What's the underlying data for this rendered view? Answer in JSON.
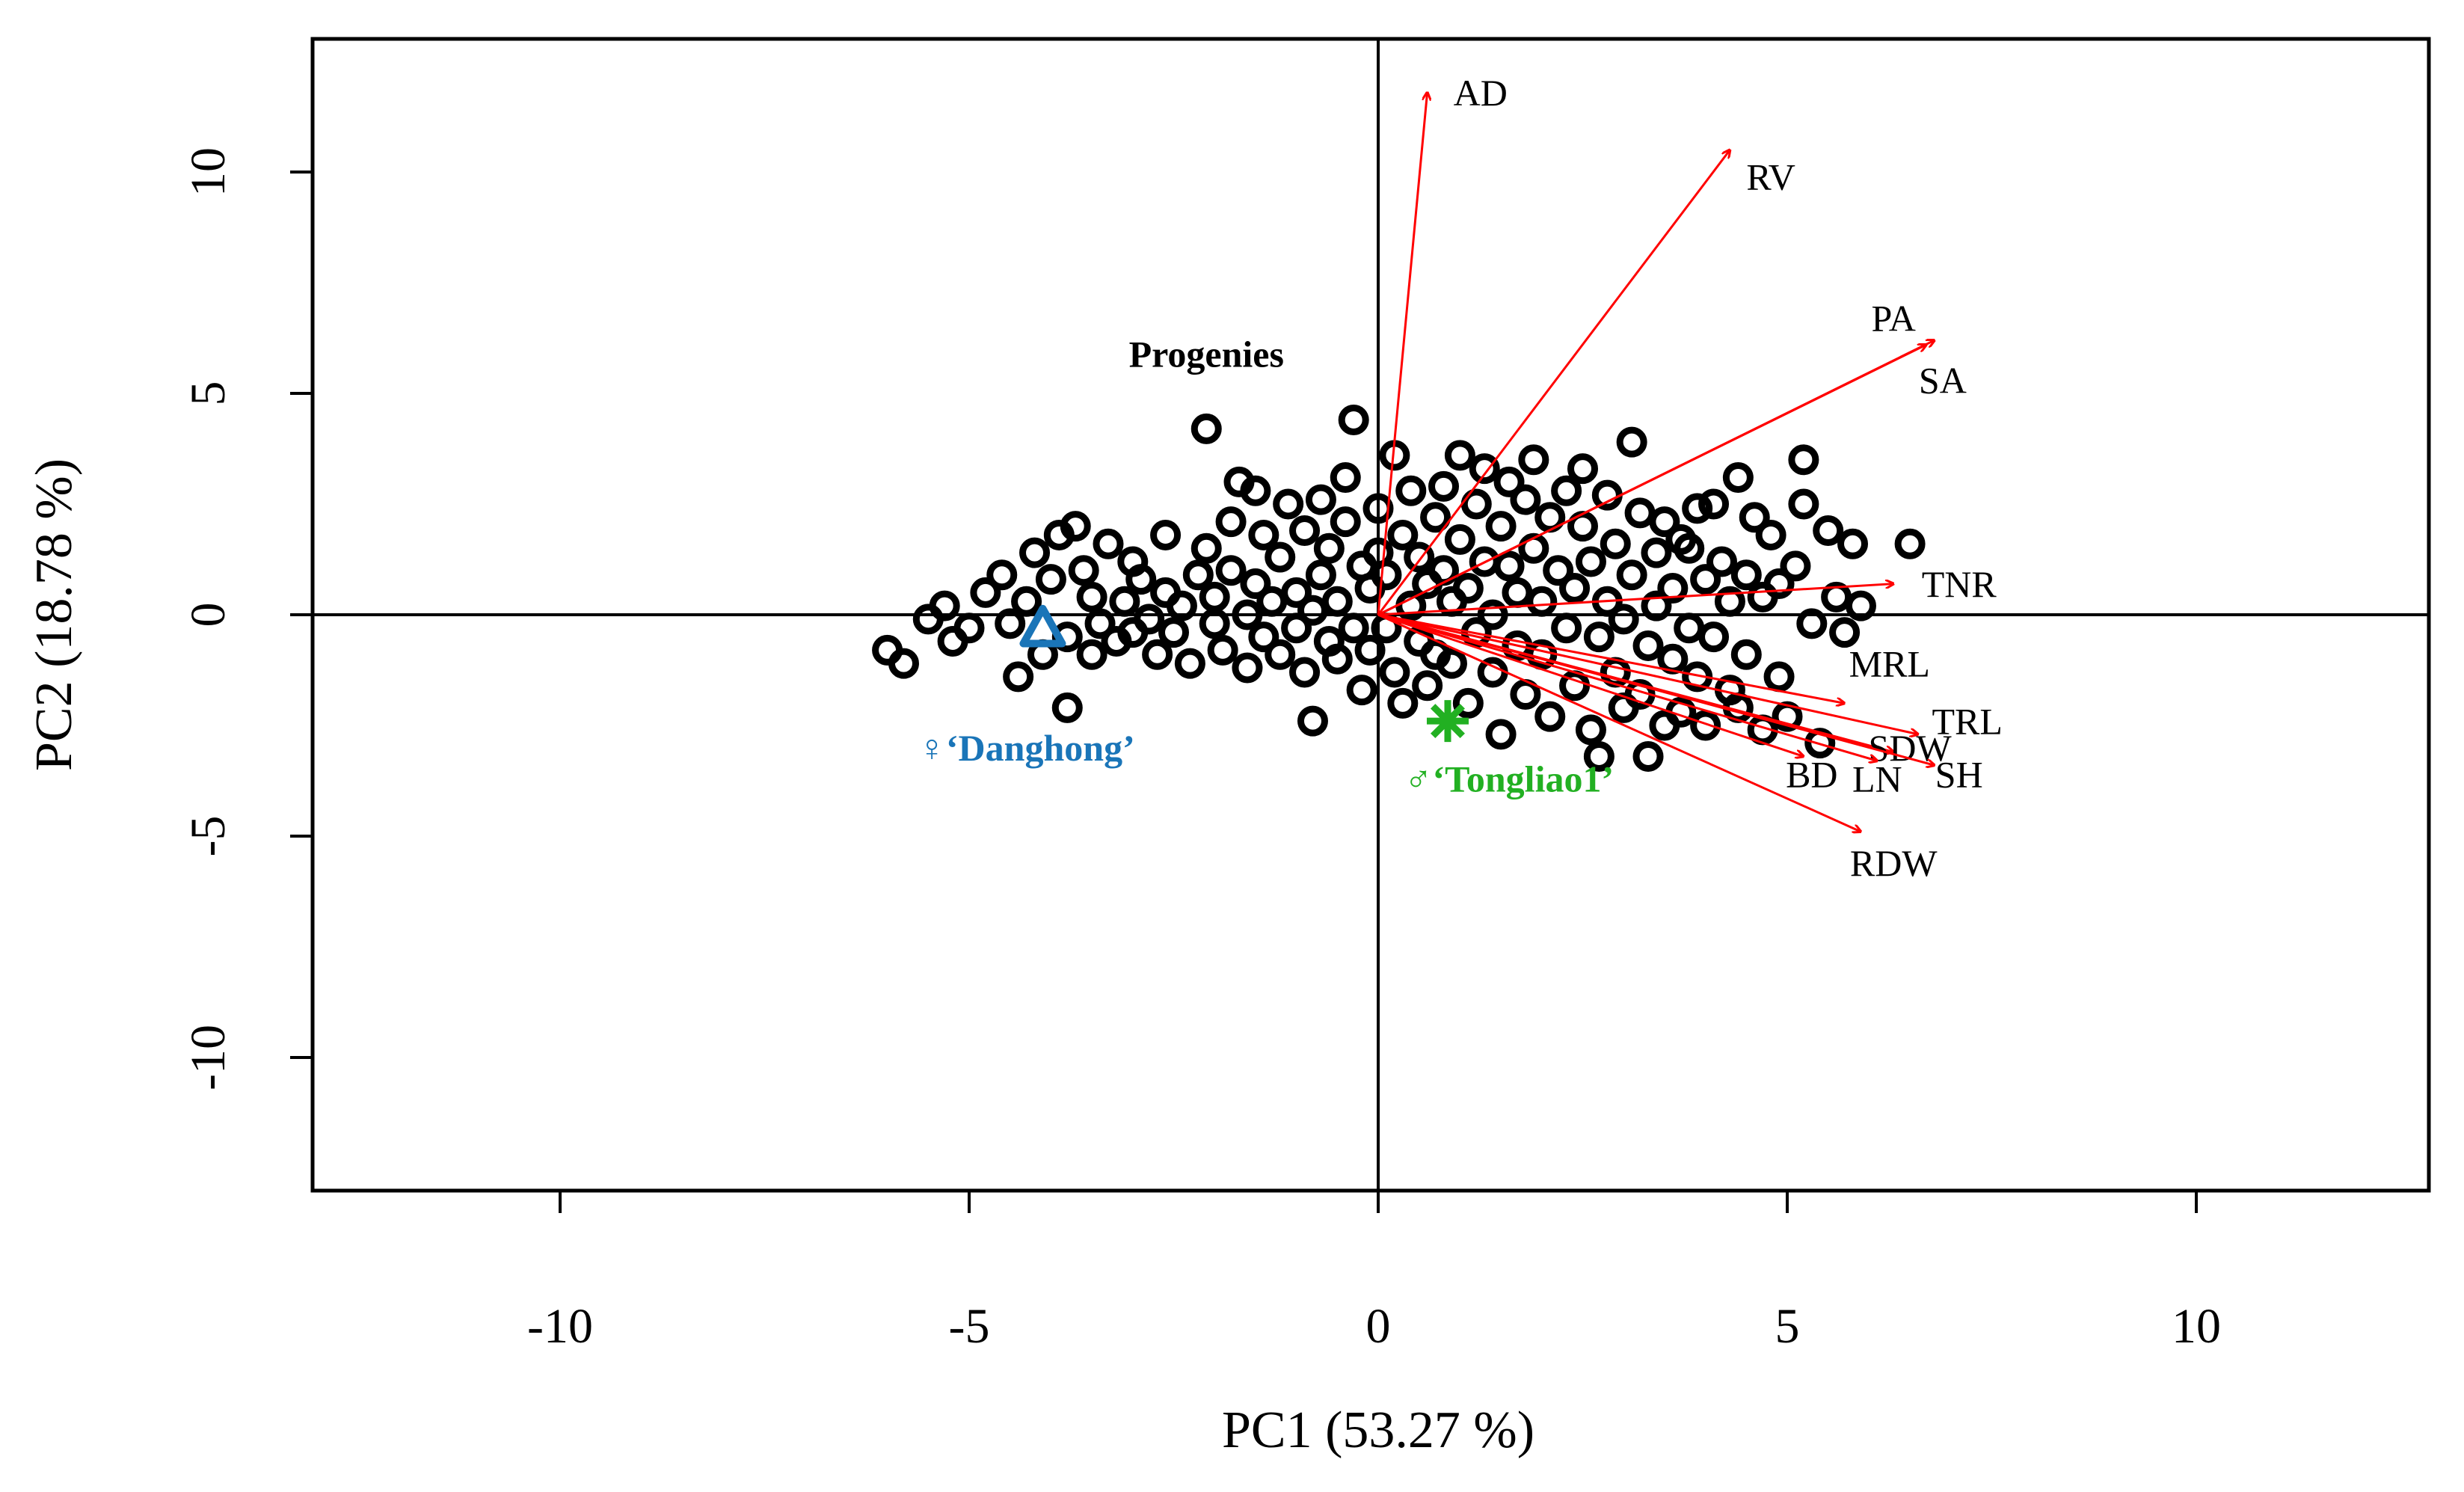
{
  "chart_data": {
    "type": "scatter",
    "subtype": "pca-biplot",
    "xlabel": "PC1 (53.27 %)",
    "ylabel": "PC2 (18.78 %)",
    "xlim": [
      -13,
      13
    ],
    "ylim": [
      -13,
      13
    ],
    "xticks": [
      -10,
      -5,
      0,
      5,
      10
    ],
    "yticks": [
      -10,
      -5,
      0,
      5,
      10
    ],
    "xtick_labels": [
      "-10",
      "-5",
      "0",
      "5",
      "10"
    ],
    "ytick_labels": [
      "-10",
      "-5",
      "0",
      "5",
      "10"
    ],
    "reference_lines": {
      "x": 0,
      "y": 0
    },
    "group_label": {
      "text": "Progenies",
      "x": -2.1,
      "y": 5.6
    },
    "parents": [
      {
        "name": "female-parent",
        "label": "♀‘Danghong’",
        "marker": "triangle",
        "color": "#1a75b8",
        "x": -4.1,
        "y": -0.3,
        "label_x": -4.3,
        "label_y": -3.1
      },
      {
        "name": "male-parent",
        "label": "♂‘Tongliao1’",
        "marker": "asterisk",
        "color": "#22b022",
        "x": 0.85,
        "y": -2.4,
        "label_x": 1.6,
        "label_y": -3.8
      }
    ],
    "loadings": [
      {
        "label": "AD",
        "x": 0.6,
        "y": 11.8,
        "lx": 1.25,
        "ly": 11.7
      },
      {
        "label": "RV",
        "x": 4.3,
        "y": 10.5,
        "lx": 4.8,
        "ly": 9.8
      },
      {
        "label": "PA",
        "x": 6.7,
        "y": 6.1,
        "lx": 6.3,
        "ly": 6.6
      },
      {
        "label": "SA",
        "x": 6.8,
        "y": 6.2,
        "lx": 6.9,
        "ly": 5.2
      },
      {
        "label": "TNR",
        "x": 6.3,
        "y": 0.7,
        "lx": 7.1,
        "ly": 0.6
      },
      {
        "label": "MRL",
        "x": 5.7,
        "y": -2.0,
        "lx": 6.25,
        "ly": -1.2
      },
      {
        "label": "TRL",
        "x": 6.6,
        "y": -2.7,
        "lx": 7.2,
        "ly": -2.5
      },
      {
        "label": "SDW",
        "x": 6.3,
        "y": -3.1,
        "lx": 6.5,
        "ly": -3.1
      },
      {
        "label": "SH",
        "x": 6.8,
        "y": -3.4,
        "lx": 7.1,
        "ly": -3.7
      },
      {
        "label": "LN",
        "x": 6.1,
        "y": -3.3,
        "lx": 6.1,
        "ly": -3.8
      },
      {
        "label": "BD",
        "x": 5.2,
        "y": -3.2,
        "lx": 5.3,
        "ly": -3.7
      },
      {
        "label": "RDW",
        "x": 5.9,
        "y": -4.9,
        "lx": 6.3,
        "ly": -5.7
      }
    ],
    "progenies": [
      [
        -6.0,
        -0.8
      ],
      [
        -5.8,
        -1.1
      ],
      [
        -5.5,
        -0.1
      ],
      [
        -5.3,
        0.2
      ],
      [
        -5.2,
        -0.6
      ],
      [
        -5.0,
        -0.3
      ],
      [
        -4.8,
        0.5
      ],
      [
        -4.6,
        0.9
      ],
      [
        -4.5,
        -0.2
      ],
      [
        -4.4,
        -1.4
      ],
      [
        -4.3,
        0.3
      ],
      [
        -4.2,
        1.4
      ],
      [
        -4.1,
        -0.9
      ],
      [
        -4.0,
        0.8
      ],
      [
        -3.9,
        1.8
      ],
      [
        -3.8,
        -2.1
      ],
      [
        -3.8,
        -0.5
      ],
      [
        -3.7,
        2.0
      ],
      [
        -3.6,
        1.0
      ],
      [
        -3.5,
        0.4
      ],
      [
        -3.5,
        -0.9
      ],
      [
        -3.4,
        -0.2
      ],
      [
        -3.3,
        1.6
      ],
      [
        -3.2,
        -0.6
      ],
      [
        -3.1,
        0.3
      ],
      [
        -3.0,
        -0.4
      ],
      [
        -3.0,
        1.2
      ],
      [
        -2.9,
        0.8
      ],
      [
        -2.8,
        -0.1
      ],
      [
        -2.7,
        -0.9
      ],
      [
        -2.6,
        1.8
      ],
      [
        -2.6,
        0.5
      ],
      [
        -2.5,
        -0.4
      ],
      [
        -2.4,
        0.2
      ],
      [
        -2.3,
        -1.1
      ],
      [
        -2.2,
        0.9
      ],
      [
        -2.1,
        4.2
      ],
      [
        -2.1,
        1.5
      ],
      [
        -2.0,
        -0.2
      ],
      [
        -2.0,
        0.4
      ],
      [
        -1.9,
        -0.8
      ],
      [
        -1.8,
        2.1
      ],
      [
        -1.8,
        1.0
      ],
      [
        -1.7,
        3.0
      ],
      [
        -1.6,
        0.0
      ],
      [
        -1.6,
        -1.2
      ],
      [
        -1.5,
        2.8
      ],
      [
        -1.5,
        0.7
      ],
      [
        -1.4,
        -0.5
      ],
      [
        -1.4,
        1.8
      ],
      [
        -1.3,
        0.3
      ],
      [
        -1.2,
        -0.9
      ],
      [
        -1.2,
        1.3
      ],
      [
        -1.1,
        2.5
      ],
      [
        -1.0,
        0.5
      ],
      [
        -1.0,
        -0.3
      ],
      [
        -0.9,
        1.9
      ],
      [
        -0.9,
        -1.3
      ],
      [
        -0.8,
        0.1
      ],
      [
        -0.8,
        -2.4
      ],
      [
        -0.7,
        2.6
      ],
      [
        -0.7,
        0.9
      ],
      [
        -0.6,
        -0.6
      ],
      [
        -0.6,
        1.5
      ],
      [
        -0.5,
        -1.0
      ],
      [
        -0.5,
        0.3
      ],
      [
        -0.4,
        3.1
      ],
      [
        -0.4,
        2.1
      ],
      [
        -0.3,
        4.4
      ],
      [
        -0.3,
        -0.3
      ],
      [
        -0.2,
        1.1
      ],
      [
        -0.2,
        -1.7
      ],
      [
        -0.1,
        0.6
      ],
      [
        -0.1,
        -0.8
      ],
      [
        0.0,
        2.4
      ],
      [
        0.0,
        1.4
      ],
      [
        0.1,
        -0.3
      ],
      [
        0.1,
        0.9
      ],
      [
        0.2,
        3.6
      ],
      [
        0.2,
        -1.3
      ],
      [
        0.3,
        1.8
      ],
      [
        0.3,
        -2.0
      ],
      [
        0.4,
        0.2
      ],
      [
        0.4,
        2.8
      ],
      [
        0.5,
        -0.6
      ],
      [
        0.5,
        1.3
      ],
      [
        0.6,
        -1.6
      ],
      [
        0.6,
        0.7
      ],
      [
        0.7,
        2.2
      ],
      [
        0.7,
        -0.9
      ],
      [
        0.8,
        1.0
      ],
      [
        0.8,
        2.9
      ],
      [
        0.9,
        -1.1
      ],
      [
        0.9,
        0.3
      ],
      [
        1.0,
        1.7
      ],
      [
        1.0,
        3.6
      ],
      [
        1.1,
        -2.0
      ],
      [
        1.1,
        0.6
      ],
      [
        1.2,
        2.5
      ],
      [
        1.2,
        -0.4
      ],
      [
        1.3,
        1.2
      ],
      [
        1.3,
        3.3
      ],
      [
        1.4,
        -1.3
      ],
      [
        1.4,
        0.0
      ],
      [
        1.5,
        2.0
      ],
      [
        1.5,
        -2.7
      ],
      [
        1.6,
        1.1
      ],
      [
        1.6,
        3.0
      ],
      [
        1.7,
        -0.7
      ],
      [
        1.7,
        0.5
      ],
      [
        1.8,
        2.6
      ],
      [
        1.8,
        -1.8
      ],
      [
        1.9,
        1.5
      ],
      [
        1.9,
        3.5
      ],
      [
        2.0,
        -0.9
      ],
      [
        2.0,
        0.3
      ],
      [
        2.1,
        2.2
      ],
      [
        2.1,
        -2.3
      ],
      [
        2.2,
        1.0
      ],
      [
        2.3,
        -0.3
      ],
      [
        2.3,
        2.8
      ],
      [
        2.4,
        0.6
      ],
      [
        2.4,
        -1.6
      ],
      [
        2.5,
        2.0
      ],
      [
        2.5,
        3.3
      ],
      [
        2.6,
        -2.6
      ],
      [
        2.6,
        1.2
      ],
      [
        2.7,
        -0.5
      ],
      [
        2.7,
        -3.2
      ],
      [
        2.8,
        2.7
      ],
      [
        2.8,
        0.3
      ],
      [
        2.9,
        -1.3
      ],
      [
        2.9,
        1.6
      ],
      [
        3.0,
        -2.1
      ],
      [
        3.0,
        -0.1
      ],
      [
        3.1,
        3.9
      ],
      [
        3.1,
        0.9
      ],
      [
        3.2,
        -1.8
      ],
      [
        3.2,
        2.3
      ],
      [
        3.3,
        -0.7
      ],
      [
        3.3,
        -3.2
      ],
      [
        3.4,
        1.4
      ],
      [
        3.4,
        0.2
      ],
      [
        3.5,
        -2.5
      ],
      [
        3.5,
        2.1
      ],
      [
        3.6,
        -1.0
      ],
      [
        3.6,
        0.6
      ],
      [
        3.7,
        1.7
      ],
      [
        3.7,
        -2.2
      ],
      [
        3.8,
        1.5
      ],
      [
        3.8,
        -0.3
      ],
      [
        3.9,
        2.4
      ],
      [
        3.9,
        -1.4
      ],
      [
        4.0,
        -2.5
      ],
      [
        4.0,
        0.8
      ],
      [
        4.1,
        2.5
      ],
      [
        4.1,
        -0.5
      ],
      [
        4.2,
        1.2
      ],
      [
        4.3,
        -1.7
      ],
      [
        4.3,
        0.3
      ],
      [
        4.4,
        3.1
      ],
      [
        4.4,
        -2.1
      ],
      [
        4.5,
        0.9
      ],
      [
        4.5,
        -0.9
      ],
      [
        4.6,
        2.2
      ],
      [
        4.7,
        -2.6
      ],
      [
        4.7,
        0.4
      ],
      [
        4.8,
        1.8
      ],
      [
        4.9,
        -1.4
      ],
      [
        4.9,
        0.7
      ],
      [
        5.0,
        -2.3
      ],
      [
        5.1,
        1.1
      ],
      [
        5.2,
        3.5
      ],
      [
        5.2,
        2.5
      ],
      [
        5.3,
        -0.2
      ],
      [
        5.4,
        -2.9
      ],
      [
        5.5,
        1.9
      ],
      [
        5.6,
        0.4
      ],
      [
        5.7,
        -0.4
      ],
      [
        5.8,
        1.6
      ],
      [
        5.9,
        0.2
      ],
      [
        6.5,
        1.6
      ]
    ]
  }
}
